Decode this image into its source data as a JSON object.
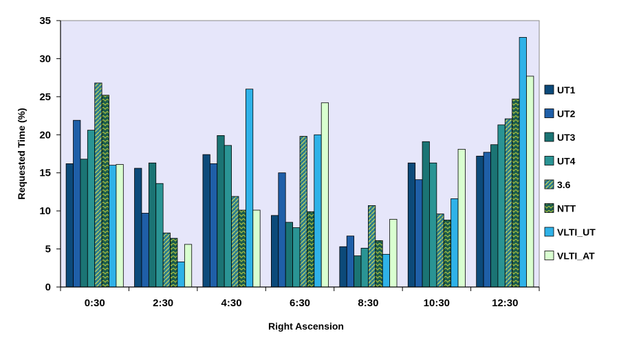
{
  "chart_data": {
    "type": "bar",
    "title": "",
    "xlabel": "Right Ascension",
    "ylabel": "Requested Time (%)",
    "ylim": [
      0,
      35
    ],
    "yticks": [
      0,
      5,
      10,
      15,
      20,
      25,
      30,
      35
    ],
    "grid": false,
    "legend_position": "right",
    "plot_background": "#e6e6fa",
    "categories": [
      "0:30",
      "2:30",
      "4:30",
      "6:30",
      "8:30",
      "10:30",
      "12:30"
    ],
    "series": [
      {
        "name": "UT1",
        "color": "#0c4a7a",
        "pattern": "solid",
        "values": [
          16.2,
          15.6,
          17.4,
          9.4,
          5.3,
          16.3,
          17.2
        ]
      },
      {
        "name": "UT2",
        "color": "#1f5fa8",
        "pattern": "solid",
        "values": [
          21.9,
          9.7,
          16.2,
          15.0,
          6.7,
          14.1,
          17.7
        ]
      },
      {
        "name": "UT3",
        "color": "#1b7474",
        "pattern": "solid",
        "values": [
          16.8,
          16.3,
          19.9,
          8.5,
          4.1,
          19.1,
          18.7
        ]
      },
      {
        "name": "UT4",
        "color": "#2a9494",
        "pattern": "solid",
        "values": [
          20.6,
          13.6,
          18.6,
          7.8,
          5.1,
          16.3,
          21.3
        ]
      },
      {
        "name": "3.6",
        "color": "#2d7c8c",
        "pattern": "hatched",
        "values": [
          26.8,
          7.1,
          11.9,
          19.8,
          10.7,
          9.6,
          22.1
        ]
      },
      {
        "name": "NTT",
        "color": "#1c5c4c",
        "pattern": "hatched",
        "values": [
          25.2,
          6.4,
          10.1,
          9.9,
          6.1,
          8.8,
          24.7
        ]
      },
      {
        "name": "VLTI_UT",
        "color": "#2fb2e8",
        "pattern": "solid",
        "values": [
          16.0,
          3.3,
          26.0,
          20.0,
          4.3,
          11.6,
          32.8
        ]
      },
      {
        "name": "VLTI_AT",
        "color": "#d9ffd0",
        "pattern": "solid",
        "values": [
          16.1,
          5.6,
          10.1,
          24.2,
          8.9,
          18.1,
          27.7
        ]
      }
    ]
  }
}
